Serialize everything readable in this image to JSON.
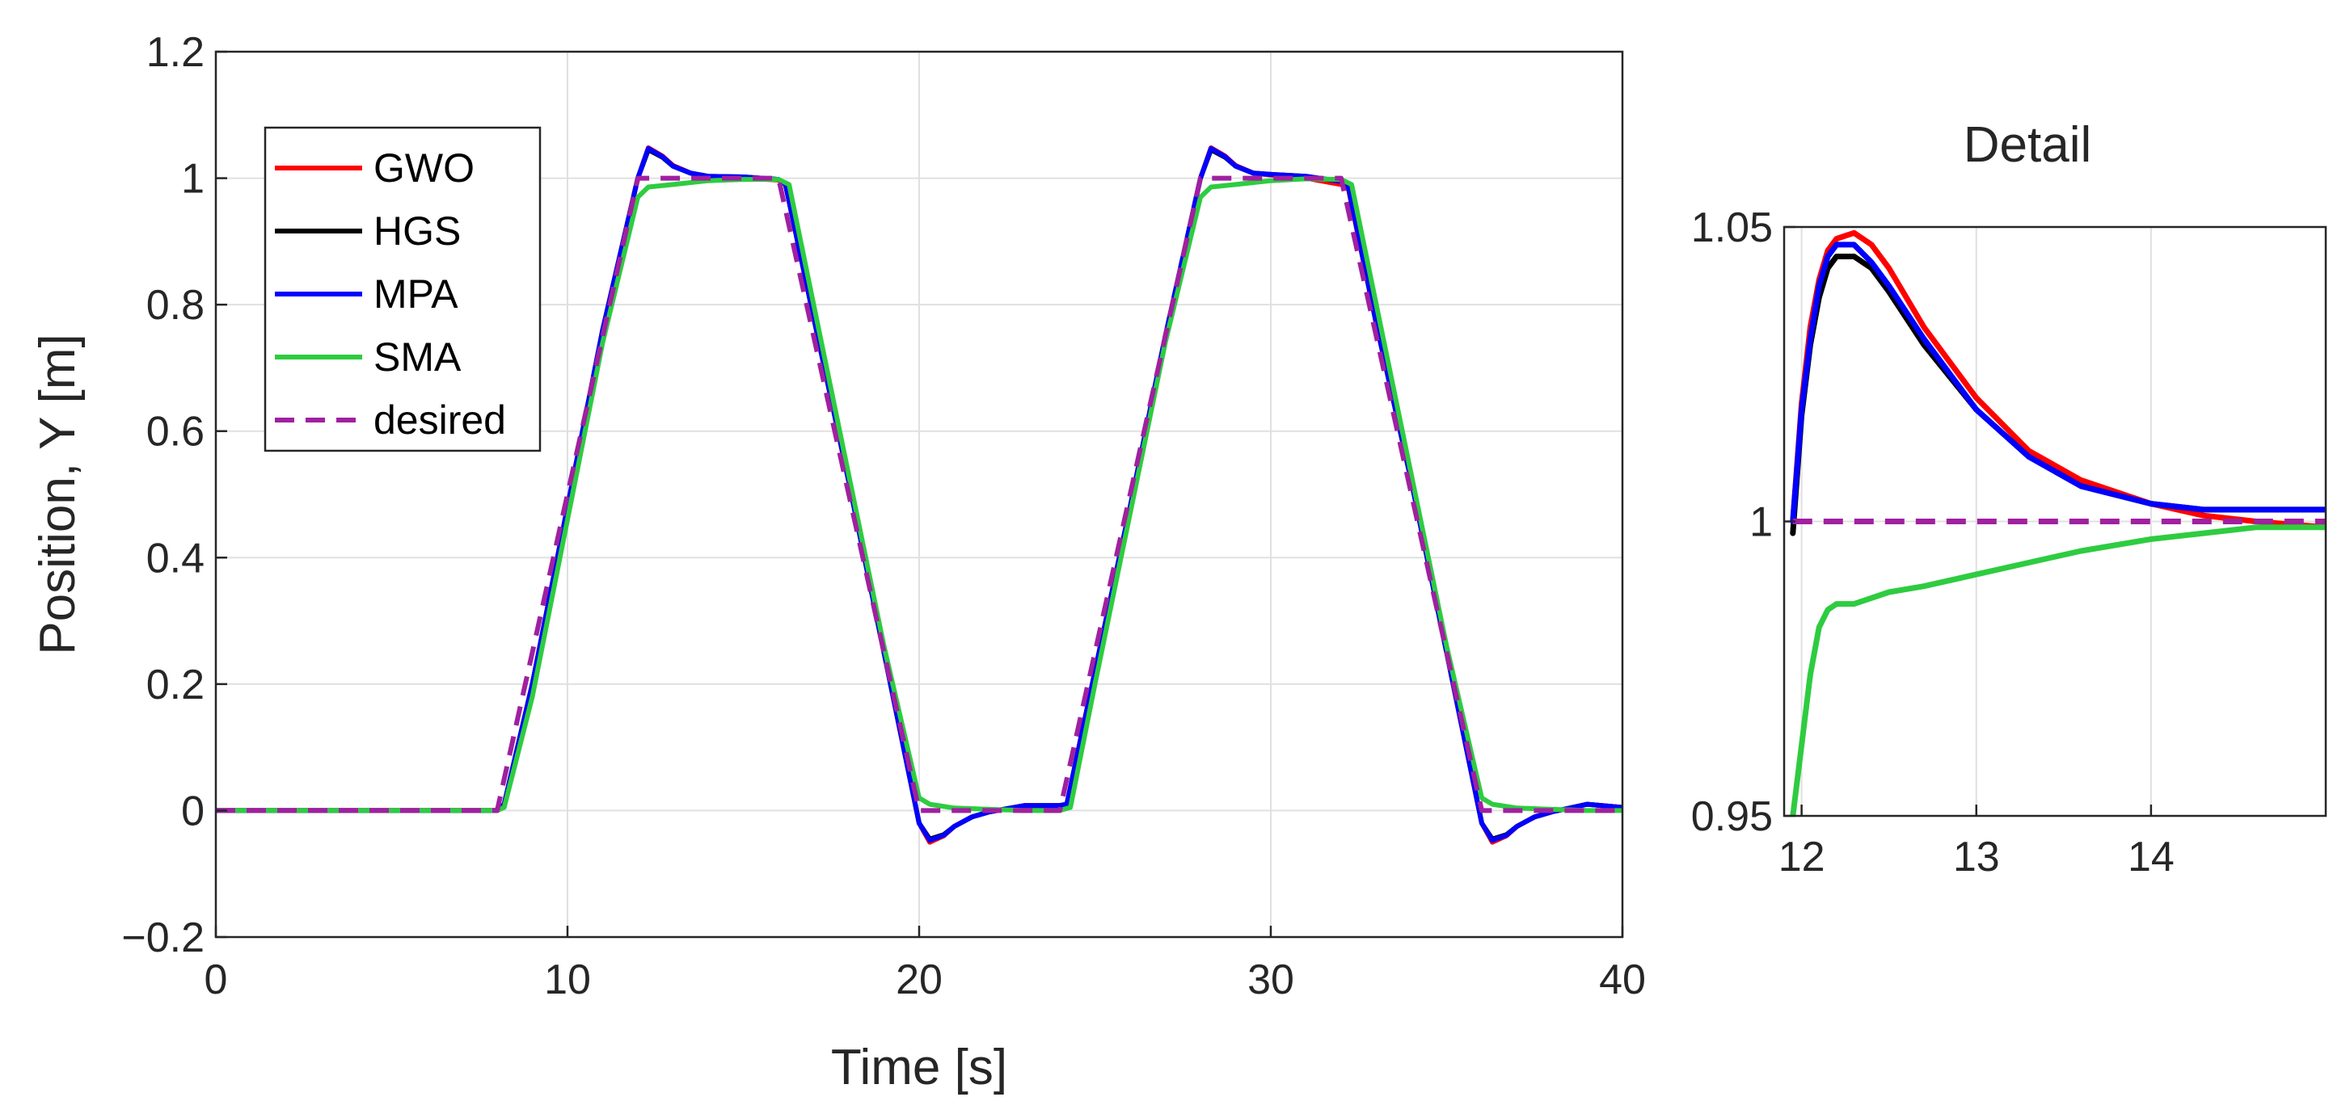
{
  "chart_data": [
    {
      "type": "line",
      "xlabel": "Time [s]",
      "ylabel": "Position, Y [m]",
      "xlim": [
        0,
        40
      ],
      "ylim": [
        -0.2,
        1.2
      ],
      "xticks": [
        0,
        10,
        20,
        30,
        40
      ],
      "xtick_labels": [
        "0",
        "10",
        "20",
        "30",
        "40"
      ],
      "yticks": [
        -0.2,
        0,
        0.2,
        0.4,
        0.6,
        0.8,
        1,
        1.2
      ],
      "ytick_labels": [
        "−0.2",
        "0",
        "0.2",
        "0.4",
        "0.6",
        "0.8",
        "1",
        "1.2"
      ],
      "grid": true,
      "legend_position": "top-left",
      "legend": [
        "GWO",
        "HGS",
        "MPA",
        "SMA",
        "desired"
      ],
      "series": [
        {
          "name": "GWO",
          "color": "#ff0000",
          "dash": "solid",
          "x": [
            0,
            8,
            8.2,
            9,
            10,
            11,
            12,
            12.3,
            12.7,
            13,
            13.5,
            14,
            15,
            16,
            16.2,
            17,
            18,
            19,
            20,
            20.3,
            20.7,
            21,
            21.5,
            22,
            23,
            24,
            24.2,
            25,
            26,
            27,
            28,
            28.3,
            28.7,
            29,
            29.5,
            30,
            31,
            32,
            32.2,
            33,
            34,
            35,
            36,
            36.3,
            36.7,
            37,
            37.5,
            38,
            39,
            40
          ],
          "y": [
            0,
            0,
            0.01,
            0.2,
            0.48,
            0.76,
            1.0,
            1.048,
            1.035,
            1.02,
            1.008,
            1.002,
            1.0,
            0.997,
            0.99,
            0.78,
            0.52,
            0.25,
            -0.02,
            -0.05,
            -0.04,
            -0.025,
            -0.01,
            -0.002,
            0.008,
            0.008,
            0.01,
            0.22,
            0.48,
            0.75,
            1.0,
            1.048,
            1.035,
            1.02,
            1.008,
            1.005,
            1.0,
            0.99,
            0.985,
            0.77,
            0.52,
            0.25,
            -0.02,
            -0.05,
            -0.04,
            -0.025,
            -0.01,
            -0.002,
            0.01,
            0.005
          ]
        },
        {
          "name": "HGS",
          "color": "#000000",
          "dash": "solid",
          "x": [
            0,
            8,
            8.2,
            9,
            10,
            11,
            12,
            12.3,
            12.7,
            13,
            13.5,
            14,
            15,
            16,
            16.2,
            17,
            18,
            19,
            20,
            20.3,
            20.7,
            21,
            21.5,
            22,
            23,
            24,
            24.2,
            25,
            26,
            27,
            28,
            28.3,
            28.7,
            29,
            29.5,
            30,
            31,
            32,
            32.2,
            33,
            34,
            35,
            36,
            36.3,
            36.7,
            37,
            37.5,
            38,
            39,
            40
          ],
          "y": [
            0,
            0,
            0.01,
            0.2,
            0.48,
            0.76,
            1.0,
            1.045,
            1.033,
            1.019,
            1.008,
            1.003,
            1.002,
            0.998,
            0.99,
            0.78,
            0.52,
            0.25,
            -0.02,
            -0.045,
            -0.038,
            -0.025,
            -0.01,
            -0.002,
            0.008,
            0.008,
            0.01,
            0.22,
            0.48,
            0.75,
            1.0,
            1.045,
            1.033,
            1.019,
            1.008,
            1.006,
            1.003,
            0.995,
            0.988,
            0.77,
            0.52,
            0.25,
            -0.02,
            -0.045,
            -0.038,
            -0.025,
            -0.01,
            -0.002,
            0.01,
            0.005
          ]
        },
        {
          "name": "MPA",
          "color": "#0000ff",
          "dash": "solid",
          "x": [
            0,
            8,
            8.2,
            9,
            10,
            11,
            12,
            12.3,
            12.7,
            13,
            13.5,
            14,
            15,
            16,
            16.2,
            17,
            18,
            19,
            20,
            20.3,
            20.7,
            21,
            21.5,
            22,
            23,
            24,
            24.2,
            25,
            26,
            27,
            28,
            28.3,
            28.7,
            29,
            29.5,
            30,
            31,
            32,
            32.2,
            33,
            34,
            35,
            36,
            36.3,
            36.7,
            37,
            37.5,
            38,
            39,
            40
          ],
          "y": [
            0,
            0,
            0.01,
            0.2,
            0.48,
            0.76,
            1.0,
            1.047,
            1.034,
            1.019,
            1.008,
            1.003,
            1.002,
            0.998,
            0.99,
            0.78,
            0.52,
            0.25,
            -0.02,
            -0.047,
            -0.039,
            -0.025,
            -0.01,
            -0.002,
            0.008,
            0.008,
            0.01,
            0.22,
            0.48,
            0.75,
            1.0,
            1.047,
            1.034,
            1.019,
            1.008,
            1.006,
            1.003,
            0.995,
            0.988,
            0.77,
            0.52,
            0.25,
            -0.02,
            -0.047,
            -0.039,
            -0.025,
            -0.01,
            -0.002,
            0.01,
            0.005
          ]
        },
        {
          "name": "SMA",
          "color": "#2ecc40",
          "dash": "solid",
          "x": [
            0,
            8,
            8.2,
            9,
            10,
            11,
            12,
            12.3,
            13,
            14,
            15,
            16,
            16.3,
            17,
            18,
            19,
            20,
            20.3,
            21,
            22,
            23,
            24,
            24.3,
            25,
            26,
            27,
            28,
            28.3,
            29,
            30,
            31,
            32,
            32.3,
            33,
            34,
            35,
            36,
            36.3,
            37,
            38,
            39,
            40
          ],
          "y": [
            0,
            0,
            0.005,
            0.18,
            0.46,
            0.74,
            0.97,
            0.986,
            0.99,
            0.996,
            0.998,
            0.998,
            0.99,
            0.8,
            0.53,
            0.26,
            0.02,
            0.01,
            0.004,
            0.002,
            0.0,
            0.0,
            0.005,
            0.2,
            0.47,
            0.74,
            0.97,
            0.986,
            0.99,
            0.996,
            0.999,
            0.998,
            0.99,
            0.8,
            0.53,
            0.26,
            0.02,
            0.01,
            0.004,
            0.002,
            0.0,
            0.0
          ]
        },
        {
          "name": "desired",
          "color": "#a020a0",
          "dash": "dashed",
          "x": [
            0,
            8,
            12,
            16,
            20,
            24,
            28,
            32,
            36,
            40
          ],
          "y": [
            0,
            0,
            1,
            1,
            0,
            0,
            1,
            1,
            0,
            0
          ]
        }
      ]
    },
    {
      "type": "line",
      "title": "Detail",
      "xlim": [
        11.9,
        15
      ],
      "ylim": [
        0.95,
        1.05
      ],
      "xticks": [
        12,
        13,
        14
      ],
      "xtick_labels": [
        "12",
        "13",
        "14"
      ],
      "yticks": [
        0.95,
        1,
        1.05
      ],
      "ytick_labels": [
        "0.95",
        "1",
        "1.05"
      ],
      "grid": true,
      "series": [
        {
          "name": "GWO",
          "color": "#ff0000",
          "dash": "solid",
          "x": [
            11.95,
            12.0,
            12.05,
            12.1,
            12.15,
            12.2,
            12.3,
            12.4,
            12.5,
            12.7,
            13.0,
            13.3,
            13.6,
            14.0,
            14.3,
            14.6,
            15.0
          ],
          "y": [
            1.0,
            1.02,
            1.033,
            1.041,
            1.046,
            1.048,
            1.049,
            1.047,
            1.043,
            1.033,
            1.021,
            1.012,
            1.007,
            1.003,
            1.001,
            1.0,
            0.999
          ]
        },
        {
          "name": "HGS",
          "color": "#000000",
          "dash": "solid",
          "x": [
            11.95,
            12.0,
            12.05,
            12.1,
            12.15,
            12.2,
            12.3,
            12.4,
            12.5,
            12.7,
            13.0,
            13.3,
            13.6,
            14.0,
            14.3,
            14.6,
            15.0
          ],
          "y": [
            0.998,
            1.018,
            1.03,
            1.038,
            1.043,
            1.045,
            1.045,
            1.043,
            1.039,
            1.03,
            1.019,
            1.011,
            1.006,
            1.003,
            1.002,
            1.002,
            1.002
          ]
        },
        {
          "name": "MPA",
          "color": "#0000ff",
          "dash": "solid",
          "x": [
            11.95,
            12.0,
            12.05,
            12.1,
            12.15,
            12.2,
            12.3,
            12.4,
            12.5,
            12.7,
            13.0,
            13.3,
            13.6,
            14.0,
            14.3,
            14.6,
            15.0
          ],
          "y": [
            1.0,
            1.019,
            1.031,
            1.04,
            1.045,
            1.047,
            1.047,
            1.044,
            1.04,
            1.031,
            1.019,
            1.011,
            1.006,
            1.003,
            1.002,
            1.002,
            1.002
          ]
        },
        {
          "name": "SMA",
          "color": "#2ecc40",
          "dash": "solid",
          "x": [
            11.95,
            12.0,
            12.05,
            12.1,
            12.15,
            12.2,
            12.3,
            12.4,
            12.5,
            12.7,
            13.0,
            13.3,
            13.6,
            14.0,
            14.3,
            14.6,
            15.0
          ],
          "y": [
            0.95,
            0.962,
            0.974,
            0.982,
            0.985,
            0.986,
            0.986,
            0.987,
            0.988,
            0.989,
            0.991,
            0.993,
            0.995,
            0.997,
            0.998,
            0.999,
            0.999
          ]
        },
        {
          "name": "desired",
          "color": "#a020a0",
          "dash": "dashed",
          "x": [
            11.95,
            15.0
          ],
          "y": [
            1.0,
            1.0
          ]
        }
      ]
    }
  ]
}
